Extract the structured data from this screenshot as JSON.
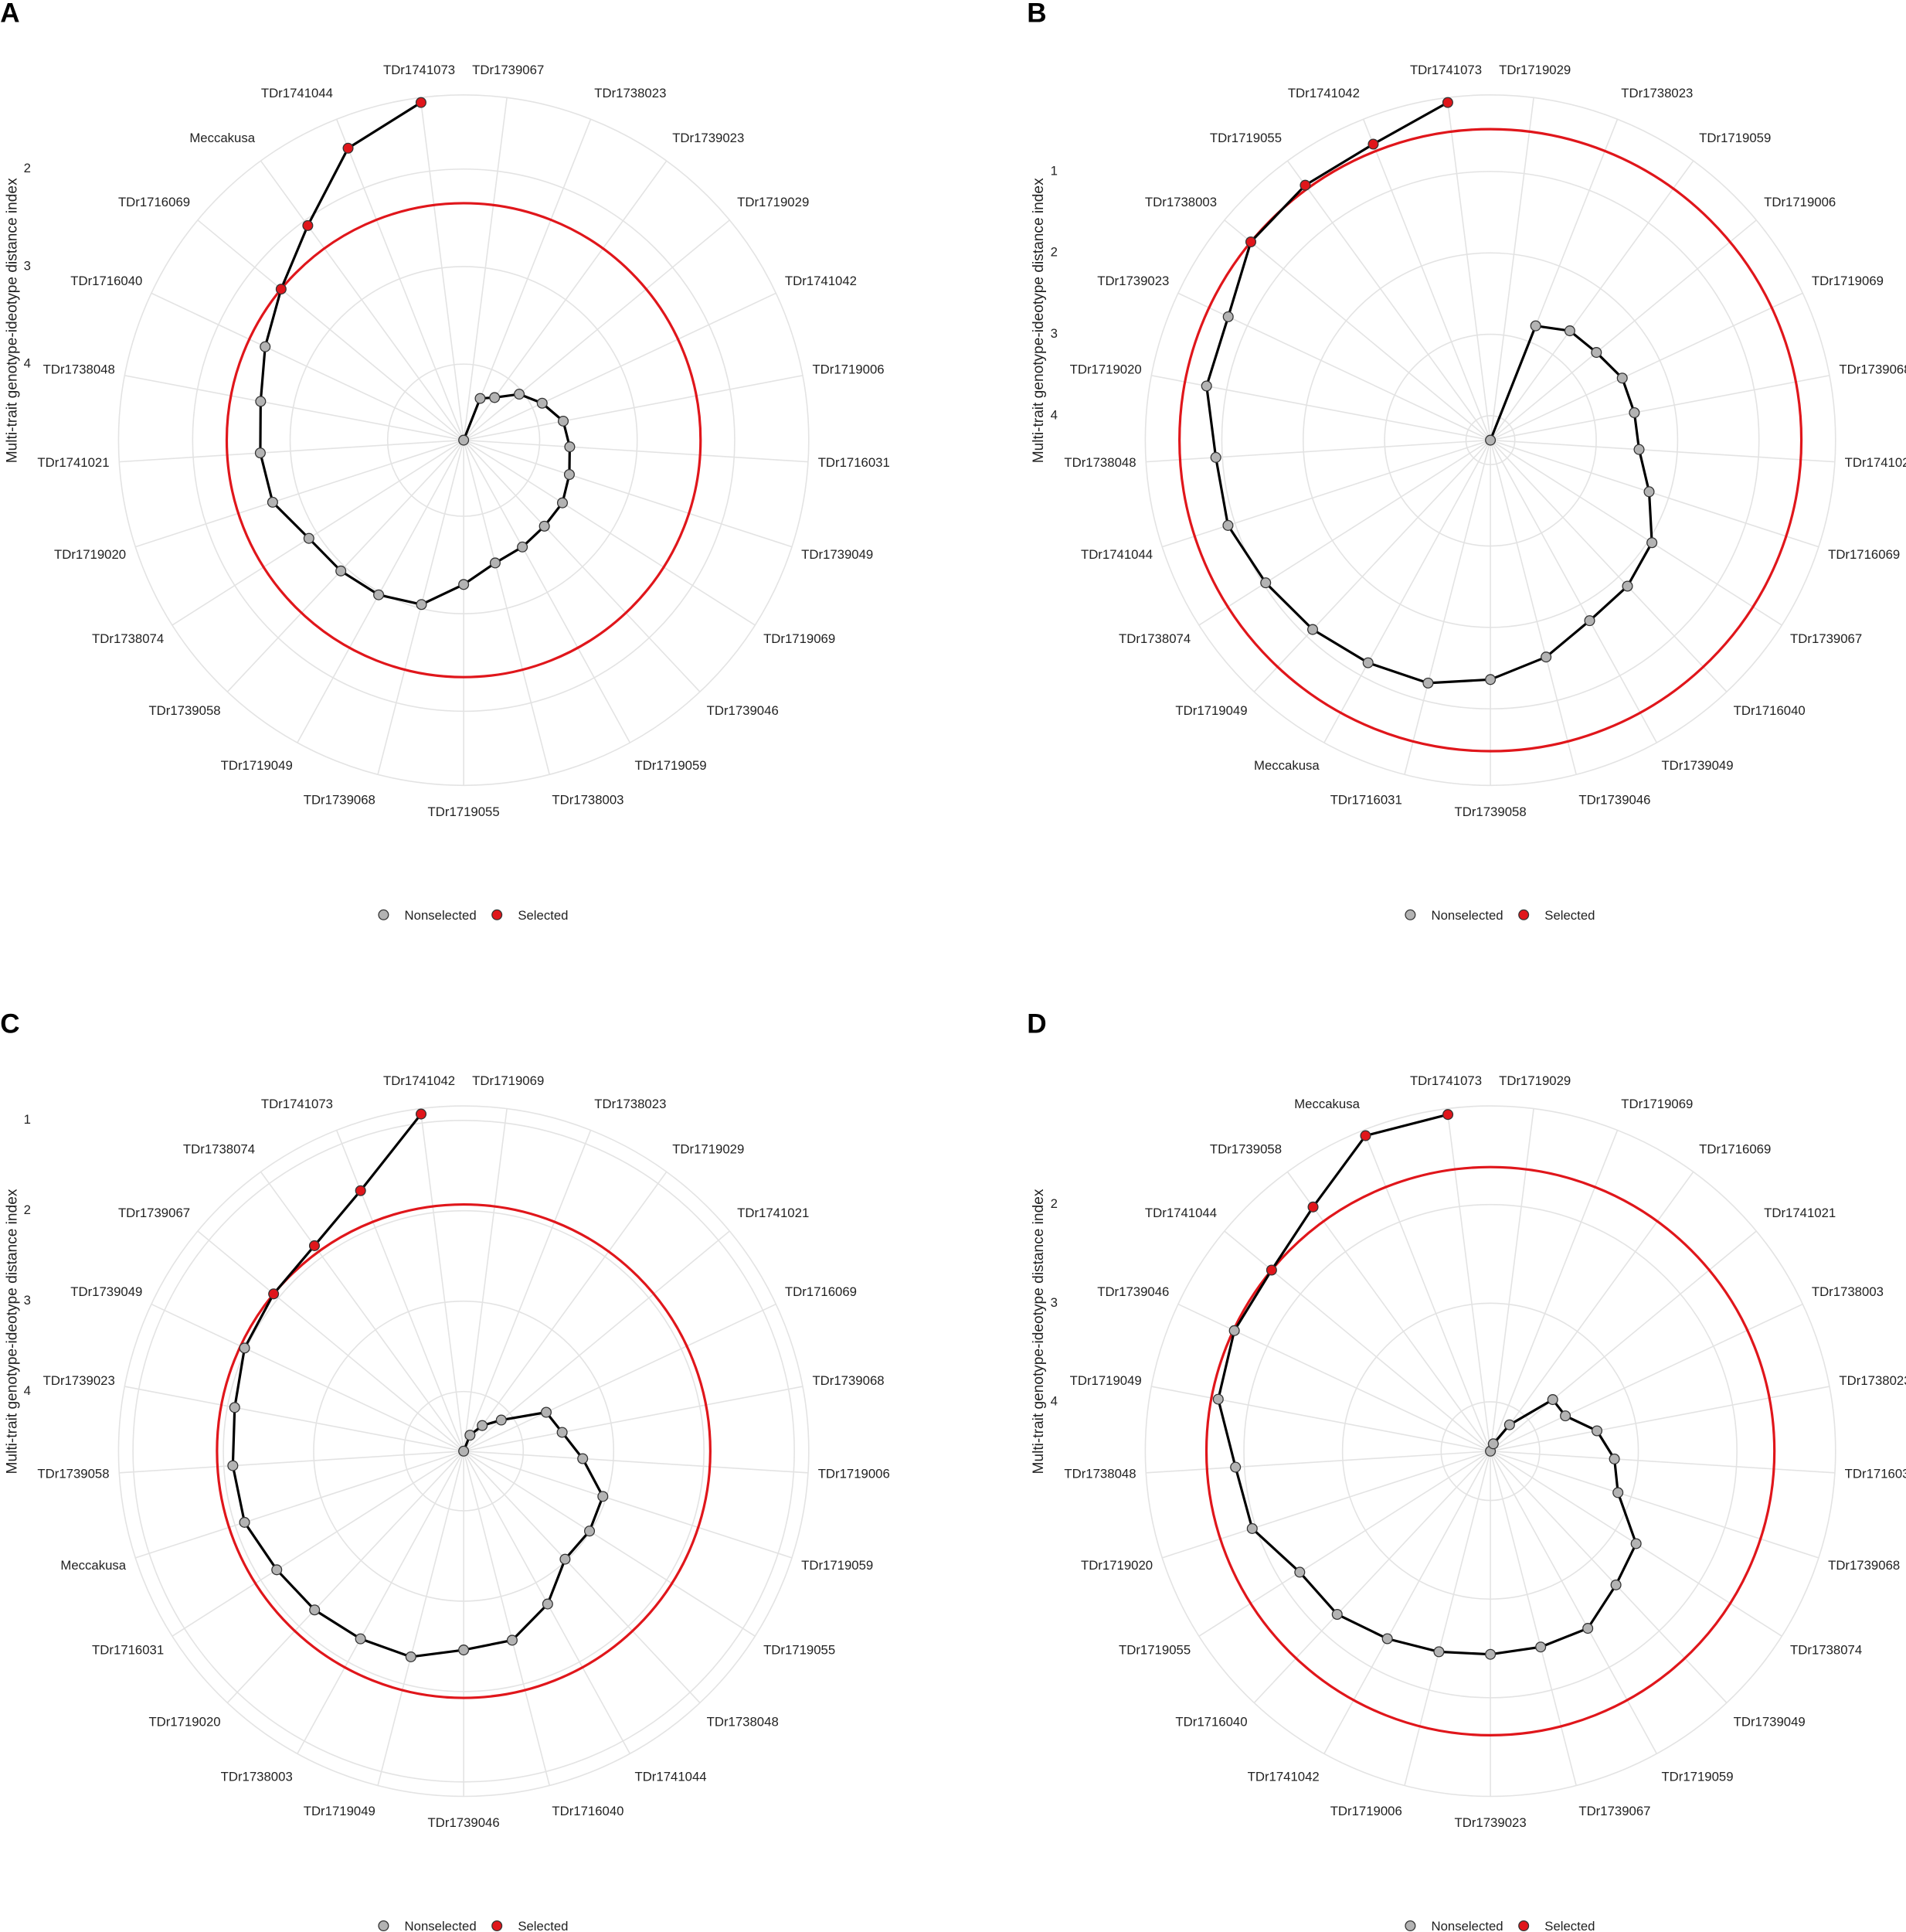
{
  "chart_data": [
    {
      "type": "radar",
      "panel": "A",
      "y_label": "Multi-trait genotype-ideotype distance index",
      "categories": [
        "TDr1739067",
        "TDr1738023",
        "TDr1739023",
        "TDr1719029",
        "TDr1741042",
        "TDr1719006",
        "TDr1716031",
        "TDr1739049",
        "TDr1719069",
        "TDr1739046",
        "TDr1719059",
        "TDr1738003",
        "TDr1719055",
        "TDr1739068",
        "TDr1719049",
        "TDr1739058",
        "TDr1738074",
        "TDr1719020",
        "TDr1741021",
        "TDr1738048",
        "TDr1716040",
        "TDr1716069",
        "Meccakusa",
        "TDr1741044",
        "TDr1741073"
      ],
      "values": [
        4.78,
        4.32,
        4.24,
        4.04,
        3.89,
        3.74,
        3.69,
        3.64,
        3.58,
        3.57,
        3.53,
        3.48,
        3.3,
        3.04,
        2.97,
        2.94,
        2.9,
        2.72,
        2.69,
        2.66,
        2.53,
        2.35,
        2.06,
        1.56,
        1.29
      ],
      "selected": [
        false,
        false,
        false,
        false,
        false,
        false,
        false,
        false,
        false,
        false,
        false,
        false,
        false,
        false,
        false,
        false,
        false,
        false,
        false,
        false,
        false,
        true,
        true,
        true,
        true
      ],
      "legend": [
        {
          "name": "Nonselected",
          "color": "#b3b3b3"
        },
        {
          "name": "Selected",
          "color": "#e0161b"
        }
      ],
      "threshold": 2.35,
      "threshold_color": "#e0161b",
      "ylim": [
        4.78,
        1.24
      ],
      "yticks": [
        2,
        3,
        4
      ],
      "grid": true
    },
    {
      "type": "radar",
      "panel": "B",
      "y_label": "Multi-trait genotype-ideotype distance index",
      "categories": [
        "TDr1719029",
        "TDr1738023",
        "TDr1719059",
        "TDr1719006",
        "TDr1719069",
        "TDr1739068",
        "TDr1741021",
        "TDr1716069",
        "TDr1739067",
        "TDr1716040",
        "TDr1739049",
        "TDr1739046",
        "TDr1739058",
        "TDr1716031",
        "Meccakusa",
        "TDr1719049",
        "TDr1738074",
        "TDr1741044",
        "TDr1738048",
        "TDr1719020",
        "TDr1739023",
        "TDr1738003",
        "TDr1719055",
        "TDr1741042",
        "TDr1741073"
      ],
      "values": [
        4.3,
        2.79,
        2.64,
        2.61,
        2.51,
        2.5,
        2.47,
        2.25,
        1.95,
        1.84,
        1.77,
        1.55,
        1.36,
        1.22,
        1.18,
        1.11,
        1.03,
        0.91,
        0.92,
        0.75,
        0.74,
        0.48,
        0.43,
        0.39,
        0.12
      ],
      "selected": [
        false,
        false,
        false,
        false,
        false,
        false,
        false,
        false,
        false,
        false,
        false,
        false,
        false,
        false,
        false,
        false,
        false,
        false,
        false,
        false,
        false,
        true,
        true,
        true,
        true
      ],
      "legend": [
        {
          "name": "Nonselected",
          "color": "#b3b3b3"
        },
        {
          "name": "Selected",
          "color": "#e0161b"
        }
      ],
      "threshold": 0.48,
      "threshold_color": "#e0161b",
      "ylim": [
        4.3,
        0.06
      ],
      "yticks": [
        1,
        2,
        3,
        4
      ],
      "grid": true
    },
    {
      "type": "radar",
      "panel": "C",
      "y_label": "Multi-trait genotype-ideotype distance index",
      "categories": [
        "TDr1719069",
        "TDr1738023",
        "TDr1719029",
        "TDr1741021",
        "TDr1716069",
        "TDr1739068",
        "TDr1719006",
        "TDr1719059",
        "TDr1719055",
        "TDr1738048",
        "TDr1741044",
        "TDr1716040",
        "TDr1739046",
        "TDr1719049",
        "TDr1738003",
        "TDr1719020",
        "TDr1716031",
        "Meccakusa",
        "TDr1739058",
        "TDr1739023",
        "TDr1739049",
        "TDr1739067",
        "TDr1738074",
        "TDr1741073",
        "TDr1741042"
      ],
      "values": [
        4.66,
        4.47,
        4.31,
        4.12,
        3.65,
        3.55,
        3.34,
        3.04,
        3.01,
        3.02,
        2.73,
        2.5,
        2.46,
        2.31,
        2.29,
        2.25,
        2.21,
        2.11,
        2.1,
        2.08,
        1.98,
        1.93,
        1.85,
        1.56,
        0.9
      ],
      "selected": [
        false,
        false,
        false,
        false,
        false,
        false,
        false,
        false,
        false,
        false,
        false,
        false,
        false,
        false,
        false,
        false,
        false,
        false,
        false,
        false,
        false,
        true,
        true,
        true,
        true
      ],
      "legend": [
        {
          "name": "Nonselected",
          "color": "#b3b3b3"
        },
        {
          "name": "Selected",
          "color": "#e0161b"
        }
      ],
      "threshold": 1.93,
      "threshold_color": "#e0161b",
      "ylim": [
        4.66,
        0.84
      ],
      "yticks": [
        1,
        2,
        3,
        4
      ],
      "grid": true
    },
    {
      "type": "radar",
      "panel": "D",
      "y_label": "Multi-trait genotype-ideotype distance index",
      "categories": [
        "TDr1719029",
        "TDr1719069",
        "TDr1716069",
        "TDr1741021",
        "TDr1738003",
        "TDr1738023",
        "TDr1716031",
        "TDr1739068",
        "TDr1738074",
        "TDr1739049",
        "TDr1719059",
        "TDr1739067",
        "TDr1739023",
        "TDr1719006",
        "TDr1741042",
        "TDr1716040",
        "TDr1719055",
        "TDr1719020",
        "TDr1738048",
        "TDr1719049",
        "TDr1739046",
        "TDr1741044",
        "TDr1739058",
        "Meccakusa",
        "TDr1741073"
      ],
      "values": [
        4.5,
        4.42,
        4.17,
        3.68,
        3.66,
        3.4,
        3.24,
        3.14,
        2.75,
        2.64,
        2.45,
        2.45,
        2.44,
        2.4,
        2.33,
        2.23,
        2.21,
        1.96,
        1.91,
        1.69,
        1.63,
        1.62,
        1.44,
        1.06,
        1.06
      ],
      "selected": [
        false,
        false,
        false,
        false,
        false,
        false,
        false,
        false,
        false,
        false,
        false,
        false,
        false,
        false,
        false,
        false,
        false,
        false,
        false,
        false,
        false,
        true,
        true,
        true,
        true
      ],
      "legend": [
        {
          "name": "Nonselected",
          "color": "#b3b3b3"
        },
        {
          "name": "Selected",
          "color": "#e0161b"
        }
      ],
      "threshold": 1.62,
      "threshold_color": "#e0161b",
      "ylim": [
        4.5,
        1.0
      ],
      "yticks": [
        2,
        3,
        4
      ],
      "grid": true
    }
  ]
}
